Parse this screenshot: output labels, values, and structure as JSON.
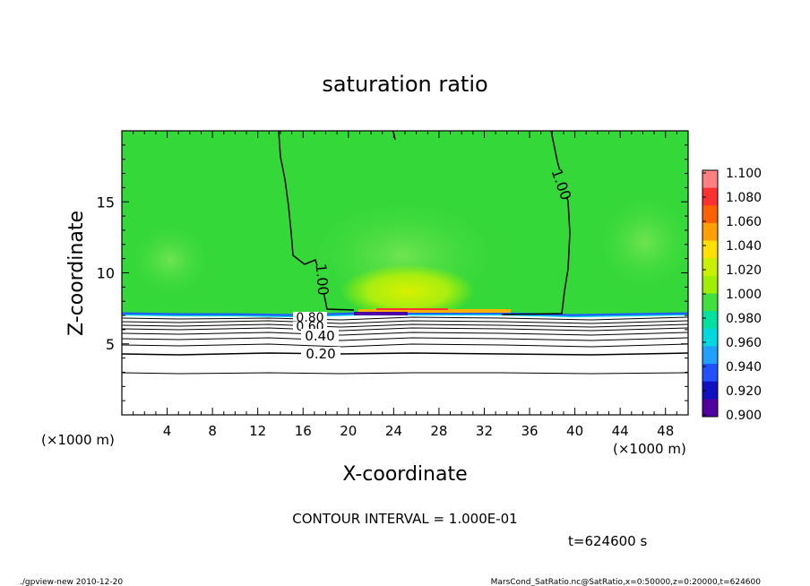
{
  "chart_data": {
    "type": "heatmap",
    "title": "saturation ratio",
    "xlabel": "X-coordinate",
    "ylabel": "Z-coordinate",
    "x_unit": "(×1000 m)",
    "y_unit": "(×1000 m)",
    "xlim": [
      0,
      50
    ],
    "ylim": [
      0,
      20
    ],
    "x_ticks": [
      "4",
      "8",
      "12",
      "16",
      "20",
      "24",
      "28",
      "32",
      "36",
      "40",
      "44",
      "48"
    ],
    "x_tick_values": [
      4,
      8,
      12,
      16,
      20,
      24,
      28,
      32,
      36,
      40,
      44,
      48
    ],
    "y_ticks": [
      "5",
      "10",
      "15"
    ],
    "y_tick_values": [
      5,
      10,
      15
    ],
    "colorbar": {
      "levels": [
        "1.100",
        "1.080",
        "1.060",
        "1.040",
        "1.020",
        "1.000",
        "0.980",
        "0.960",
        "0.940",
        "0.920",
        "0.900"
      ],
      "colors": [
        "#ff8080",
        "#ff3030",
        "#ff6000",
        "#ffa000",
        "#ffe000",
        "#c8f000",
        "#a0ee00",
        "#40e040",
        "#00e0a0",
        "#00d8e0",
        "#20a0ff",
        "#2050ff",
        "#1010c0",
        "#5000a0"
      ]
    },
    "contour_labels": [
      {
        "text": "1.00",
        "x": 40,
        "z": 16.6
      },
      {
        "text": "1.00",
        "x": 18,
        "z": 9.2
      },
      {
        "text": "0.80",
        "x": 19.4,
        "z": 6.8
      },
      {
        "text": "0.60",
        "x": 19.2,
        "z": 6.2
      },
      {
        "text": "0.40",
        "x": 19.4,
        "z": 5.6
      },
      {
        "text": "0.20",
        "x": 19.4,
        "z": 4.3
      }
    ],
    "contour_interval_text": "CONTOUR INTERVAL = 1.000E-01",
    "time_text": "t=624600  s"
  },
  "footer": {
    "left": "./gpview-new   2010-12-20",
    "right": "MarsCond_SatRatio.nc@SatRatio,x=0:50000,z=0:20000,t=624600"
  }
}
